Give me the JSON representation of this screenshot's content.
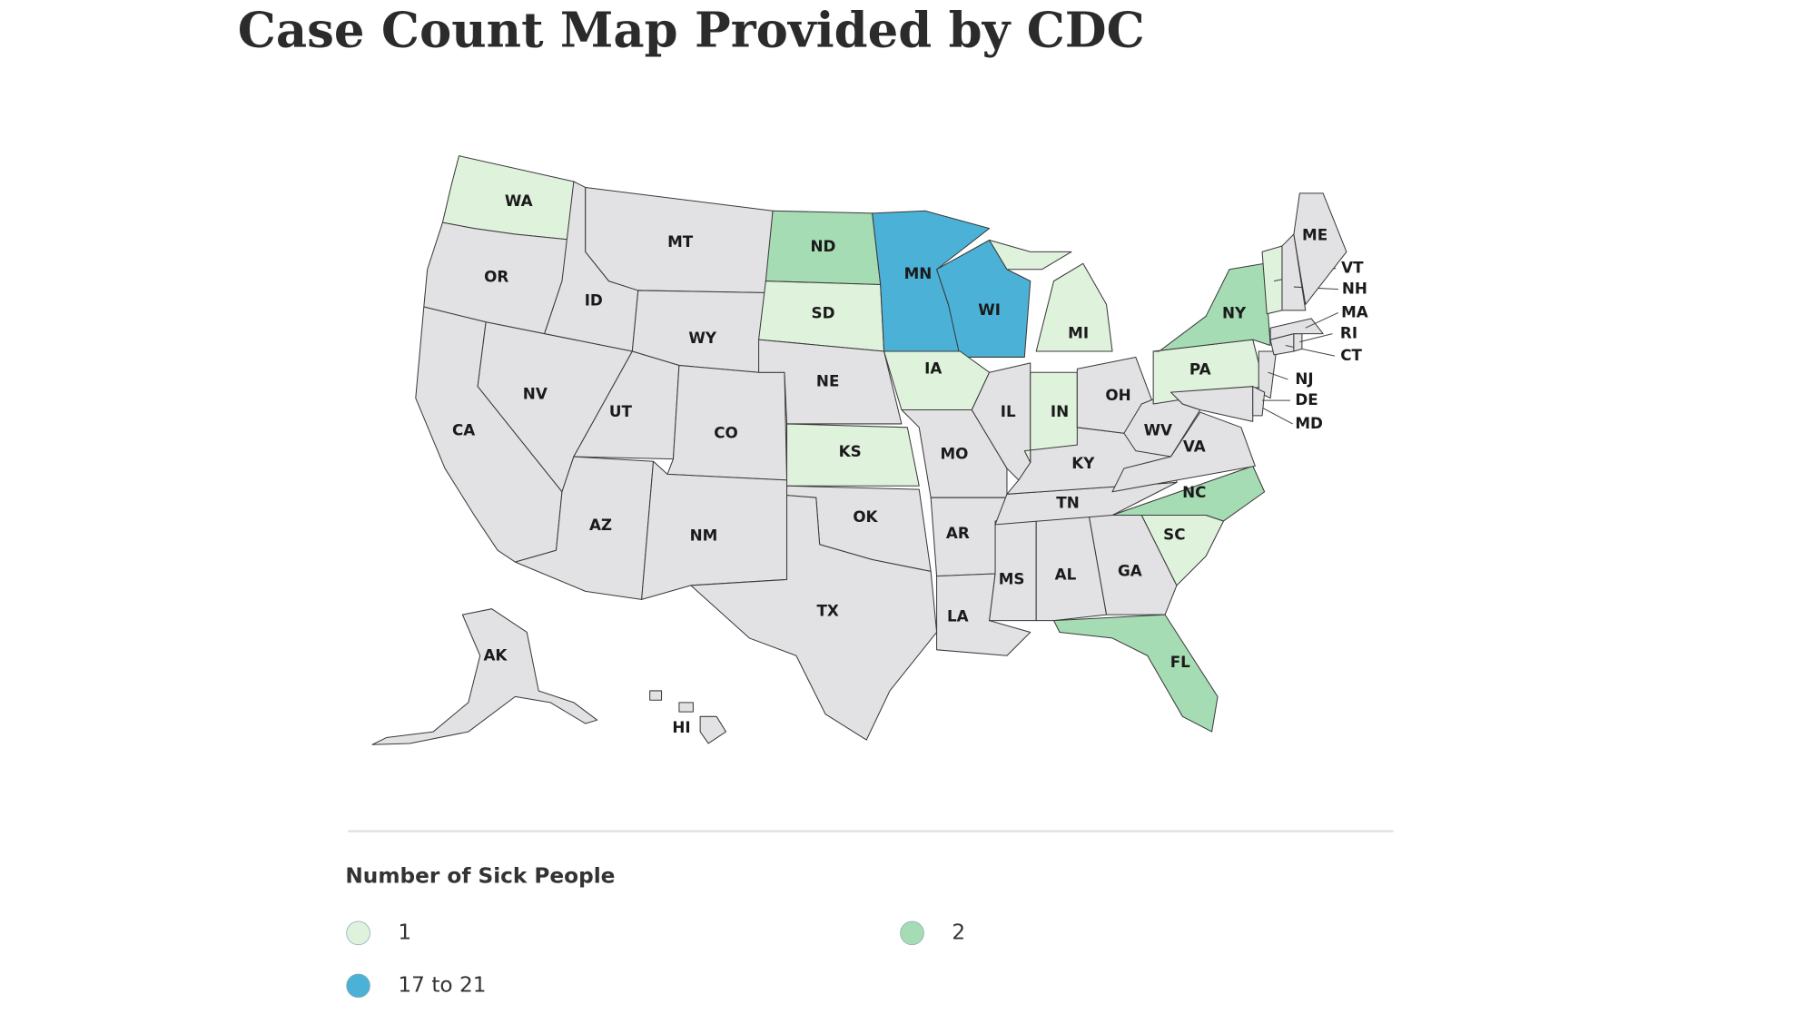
{
  "title": "Case Count Map Provided by CDC",
  "legend": {
    "title": "Number of Sick People",
    "items": [
      {
        "label": "1",
        "color": "#dff2dc"
      },
      {
        "label": "2",
        "color": "#a6dcb4"
      },
      {
        "label": "17 to 21",
        "color": "#4cb1d6"
      }
    ]
  },
  "states": [
    {
      "label": "WA",
      "color": "#dff2dc"
    },
    {
      "label": "OR",
      "color": "#e2e2e4"
    },
    {
      "label": "CA",
      "color": "#e2e2e4"
    },
    {
      "label": "ID",
      "color": "#e2e2e4"
    },
    {
      "label": "NV",
      "color": "#e2e2e4"
    },
    {
      "label": "MT",
      "color": "#e2e2e4"
    },
    {
      "label": "WY",
      "color": "#e2e2e4"
    },
    {
      "label": "UT",
      "color": "#e2e2e4"
    },
    {
      "label": "AZ",
      "color": "#e2e2e4"
    },
    {
      "label": "CO",
      "color": "#e2e2e4"
    },
    {
      "label": "NM",
      "color": "#e2e2e4"
    },
    {
      "label": "ND",
      "color": "#a6dcb4"
    },
    {
      "label": "SD",
      "color": "#dff2dc"
    },
    {
      "label": "NE",
      "color": "#e2e2e4"
    },
    {
      "label": "KS",
      "color": "#dff2dc"
    },
    {
      "label": "OK",
      "color": "#e2e2e4"
    },
    {
      "label": "TX",
      "color": "#e2e2e4"
    },
    {
      "label": "MN",
      "color": "#4cb1d6"
    },
    {
      "label": "WI",
      "color": "#4cb1d6"
    },
    {
      "label": "IA",
      "color": "#dff2dc"
    },
    {
      "label": "MO",
      "color": "#e2e2e4"
    },
    {
      "label": "AR",
      "color": "#e2e2e4"
    },
    {
      "label": "LA",
      "color": "#e2e2e4"
    },
    {
      "label": "MS",
      "color": "#e2e2e4"
    },
    {
      "label": "AL",
      "color": "#e2e2e4"
    },
    {
      "label": "GA",
      "color": "#e2e2e4"
    },
    {
      "label": "FL",
      "color": "#a6dcb4"
    },
    {
      "label": "SC",
      "color": "#dff2dc"
    },
    {
      "label": "NC",
      "color": "#a6dcb4"
    },
    {
      "label": "TN",
      "color": "#e2e2e4"
    },
    {
      "label": "KY",
      "color": "#e2e2e4"
    },
    {
      "label": "IL",
      "color": "#e2e2e4"
    },
    {
      "label": "IN",
      "color": "#dff2dc"
    },
    {
      "label": "OH",
      "color": "#e2e2e4"
    },
    {
      "label": "MI",
      "color": "#dff2dc"
    },
    {
      "label": "WV",
      "color": "#e2e2e4"
    },
    {
      "label": "VA",
      "color": "#e2e2e4"
    },
    {
      "label": "PA",
      "color": "#dff2dc"
    },
    {
      "label": "NY",
      "color": "#a6dcb4"
    },
    {
      "label": "MD",
      "color": "#e2e2e4"
    },
    {
      "label": "NJ",
      "color": "#e2e2e4"
    },
    {
      "label": "DE",
      "color": "#e2e2e4"
    },
    {
      "label": "CT",
      "color": "#e2e2e4"
    },
    {
      "label": "RI",
      "color": "#e2e2e4"
    },
    {
      "label": "MA",
      "color": "#e2e2e4"
    },
    {
      "label": "VT",
      "color": "#dff2dc"
    },
    {
      "label": "NH",
      "color": "#e2e2e4"
    },
    {
      "label": "ME",
      "color": "#e2e2e4"
    },
    {
      "label": "AK",
      "color": "#e2e2e4"
    },
    {
      "label": "HI",
      "color": "#e2e2e4"
    }
  ]
}
